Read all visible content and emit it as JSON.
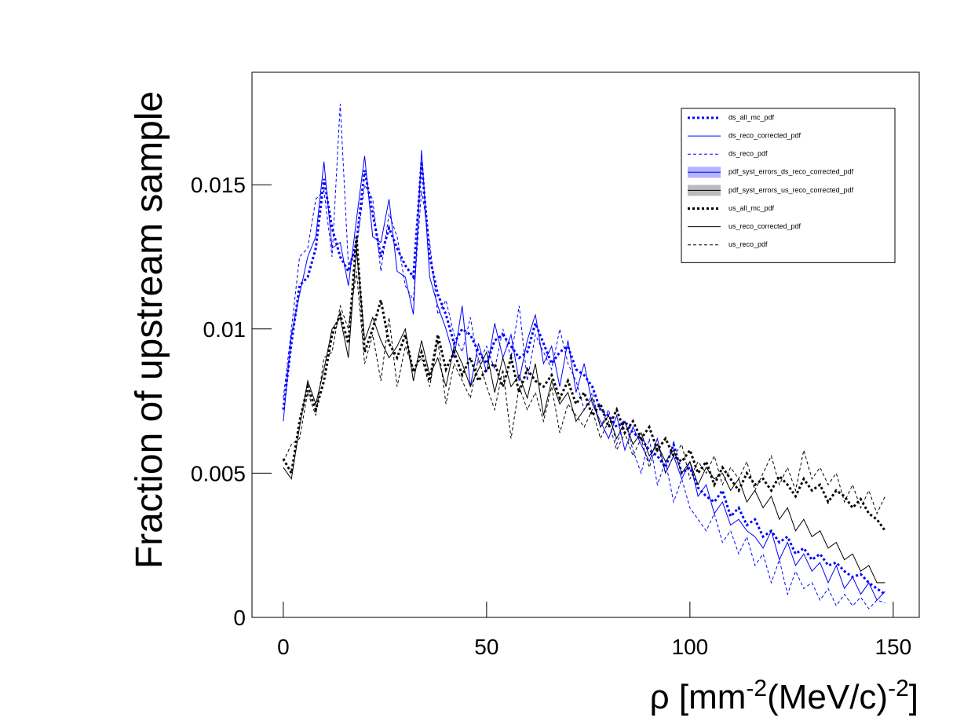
{
  "chart_data": {
    "type": "line",
    "y_label": "Fraction of upstream sample",
    "x_label_parts": [
      "ρ [mm",
      "-2",
      "(MeV/c)",
      "-2",
      "]"
    ],
    "xlim": [
      -7.7,
      156.4
    ],
    "ylim": [
      0,
      0.0189
    ],
    "xticks": [
      0,
      50,
      100,
      150
    ],
    "yticks": [
      0,
      0.005,
      0.01,
      0.015
    ],
    "x": [
      0,
      2,
      4,
      6,
      8,
      10,
      12,
      14,
      16,
      18,
      20,
      22,
      24,
      26,
      28,
      30,
      32,
      34,
      36,
      38,
      40,
      42,
      44,
      46,
      48,
      50,
      52,
      54,
      56,
      58,
      60,
      62,
      64,
      66,
      68,
      70,
      72,
      74,
      76,
      78,
      80,
      82,
      84,
      86,
      88,
      90,
      92,
      94,
      96,
      98,
      100,
      102,
      104,
      106,
      108,
      110,
      112,
      114,
      116,
      118,
      120,
      122,
      124,
      126,
      128,
      130,
      132,
      134,
      136,
      138,
      140,
      142,
      144,
      146,
      148
    ],
    "legend_position": "upper-right",
    "series": [
      {
        "name": "ds_all_mc_pdf",
        "color": "#0000ff",
        "line_style": "dotted",
        "line_width": 3,
        "values": [
          0.0072,
          0.0095,
          0.0115,
          0.0118,
          0.0128,
          0.0152,
          0.0135,
          0.0125,
          0.012,
          0.013,
          0.0155,
          0.014,
          0.0125,
          0.0135,
          0.0128,
          0.0122,
          0.0118,
          0.0158,
          0.0125,
          0.0112,
          0.0105,
          0.0095,
          0.01,
          0.0098,
          0.0092,
          0.0088,
          0.0096,
          0.0098,
          0.0094,
          0.009,
          0.0092,
          0.0102,
          0.0095,
          0.0088,
          0.0092,
          0.0094,
          0.0086,
          0.0084,
          0.008,
          0.0072,
          0.007,
          0.0066,
          0.0068,
          0.0064,
          0.0062,
          0.0058,
          0.0056,
          0.0052,
          0.006,
          0.005,
          0.0052,
          0.0045,
          0.0042,
          0.004,
          0.0044,
          0.0035,
          0.0038,
          0.0032,
          0.0034,
          0.0028,
          0.003,
          0.0026,
          0.0028,
          0.0022,
          0.0024,
          0.002,
          0.0022,
          0.0018,
          0.0019,
          0.0016,
          0.0014,
          0.0015,
          0.0012,
          0.001,
          0.0008
        ]
      },
      {
        "name": "ds_reco_corrected_pdf",
        "color": "#0000ff",
        "line_style": "solid",
        "line_width": 1,
        "values": [
          0.0068,
          0.0098,
          0.0112,
          0.0125,
          0.0132,
          0.0158,
          0.0128,
          0.013,
          0.0115,
          0.0138,
          0.016,
          0.0132,
          0.013,
          0.0145,
          0.012,
          0.0118,
          0.0105,
          0.0162,
          0.0118,
          0.0108,
          0.01,
          0.009,
          0.0108,
          0.008,
          0.0095,
          0.0085,
          0.0102,
          0.009,
          0.0098,
          0.0082,
          0.0096,
          0.0105,
          0.0088,
          0.0094,
          0.008,
          0.0096,
          0.0078,
          0.0088,
          0.0074,
          0.0068,
          0.0062,
          0.007,
          0.0058,
          0.0066,
          0.006,
          0.0054,
          0.0062,
          0.005,
          0.0056,
          0.0048,
          0.0054,
          0.0042,
          0.0046,
          0.0036,
          0.004,
          0.0032,
          0.0034,
          0.003,
          0.0028,
          0.0024,
          0.003,
          0.002,
          0.0026,
          0.0018,
          0.0022,
          0.0016,
          0.0019,
          0.0012,
          0.0018,
          0.001,
          0.0014,
          0.0008,
          0.0012,
          0.0006,
          0.0009
        ]
      },
      {
        "name": "ds_reco_pdf",
        "color": "#0000ff",
        "line_style": "dashed",
        "line_width": 1,
        "values": [
          0.0076,
          0.01,
          0.0125,
          0.0128,
          0.0145,
          0.0148,
          0.0125,
          0.0178,
          0.0122,
          0.0128,
          0.015,
          0.0145,
          0.012,
          0.014,
          0.0132,
          0.0115,
          0.011,
          0.0148,
          0.013,
          0.0105,
          0.011,
          0.0098,
          0.0092,
          0.0104,
          0.0088,
          0.0094,
          0.0086,
          0.01,
          0.009,
          0.0108,
          0.0082,
          0.0098,
          0.0092,
          0.0086,
          0.01,
          0.0088,
          0.0082,
          0.0072,
          0.0078,
          0.0066,
          0.0072,
          0.006,
          0.0068,
          0.0058,
          0.005,
          0.0062,
          0.0046,
          0.0054,
          0.004,
          0.0048,
          0.0038,
          0.0034,
          0.003,
          0.0036,
          0.0026,
          0.003,
          0.0022,
          0.0028,
          0.0018,
          0.0022,
          0.0012,
          0.002,
          0.0008,
          0.0016,
          0.001,
          0.0012,
          0.0006,
          0.001,
          0.0004,
          0.0008,
          0.0004,
          0.0007,
          0.0003,
          0.0006,
          0.0005
        ]
      },
      {
        "name": "pdf_syst_errors_ds_reco_corrected_pdf",
        "color": "#0000ff",
        "fill": "#b3b3ff",
        "line_style": "band",
        "line_width": 1
      },
      {
        "name": "pdf_syst_errors_us_reco_corrected_pdf",
        "color": "#000000",
        "fill": "#bbbbbb",
        "line_style": "band",
        "line_width": 1
      },
      {
        "name": "us_all_mc_pdf",
        "color": "#000000",
        "line_style": "dotted",
        "line_width": 3,
        "values": [
          0.0055,
          0.005,
          0.0068,
          0.008,
          0.0072,
          0.0082,
          0.0098,
          0.0105,
          0.0095,
          0.0132,
          0.0092,
          0.01,
          0.011,
          0.0095,
          0.009,
          0.0098,
          0.0085,
          0.0092,
          0.0082,
          0.0098,
          0.0086,
          0.0092,
          0.0084,
          0.009,
          0.0082,
          0.0086,
          0.0088,
          0.008,
          0.009,
          0.0078,
          0.0086,
          0.0082,
          0.008,
          0.0084,
          0.0076,
          0.0082,
          0.0074,
          0.0078,
          0.007,
          0.0074,
          0.0066,
          0.0072,
          0.0064,
          0.0068,
          0.0062,
          0.0066,
          0.0058,
          0.0062,
          0.0056,
          0.0054,
          0.0058,
          0.005,
          0.0054,
          0.0046,
          0.0052,
          0.0048,
          0.0044,
          0.005,
          0.0046,
          0.0048,
          0.0044,
          0.0049,
          0.0046,
          0.0042,
          0.0048,
          0.0044,
          0.0046,
          0.004,
          0.0044,
          0.0042,
          0.0038,
          0.0041,
          0.0036,
          0.0034,
          0.003
        ]
      },
      {
        "name": "us_reco_corrected_pdf",
        "color": "#000000",
        "line_style": "solid",
        "line_width": 1,
        "values": [
          0.0052,
          0.0048,
          0.0066,
          0.0082,
          0.0074,
          0.0086,
          0.01,
          0.0104,
          0.009,
          0.0128,
          0.0096,
          0.0104,
          0.0096,
          0.009,
          0.0094,
          0.01,
          0.0082,
          0.0096,
          0.0084,
          0.009,
          0.008,
          0.0094,
          0.0088,
          0.008,
          0.0086,
          0.0092,
          0.0078,
          0.009,
          0.008,
          0.0084,
          0.0076,
          0.0088,
          0.007,
          0.0082,
          0.0074,
          0.0078,
          0.0068,
          0.0072,
          0.0076,
          0.0066,
          0.007,
          0.0062,
          0.0068,
          0.006,
          0.0064,
          0.0056,
          0.006,
          0.0054,
          0.0058,
          0.005,
          0.0054,
          0.0046,
          0.0052,
          0.0048,
          0.005,
          0.0044,
          0.0048,
          0.004,
          0.0044,
          0.0038,
          0.0042,
          0.0034,
          0.0038,
          0.003,
          0.0034,
          0.0028,
          0.003,
          0.0024,
          0.0026,
          0.002,
          0.0022,
          0.0016,
          0.0018,
          0.0012,
          0.0012
        ]
      },
      {
        "name": "us_reco_pdf",
        "color": "#000000",
        "line_style": "dashed",
        "line_width": 1,
        "values": [
          0.0054,
          0.006,
          0.0062,
          0.0078,
          0.007,
          0.009,
          0.0092,
          0.0108,
          0.01,
          0.012,
          0.0088,
          0.0098,
          0.0082,
          0.0104,
          0.008,
          0.0094,
          0.0086,
          0.009,
          0.008,
          0.0096,
          0.0074,
          0.0088,
          0.0082,
          0.0076,
          0.009,
          0.008,
          0.0072,
          0.0086,
          0.0062,
          0.008,
          0.0072,
          0.0078,
          0.0068,
          0.008,
          0.0064,
          0.0074,
          0.007,
          0.0066,
          0.0072,
          0.0062,
          0.0068,
          0.0058,
          0.0064,
          0.0056,
          0.0062,
          0.0052,
          0.006,
          0.005,
          0.0056,
          0.006,
          0.0048,
          0.0054,
          0.005,
          0.0056,
          0.0046,
          0.0052,
          0.0048,
          0.0054,
          0.0044,
          0.005,
          0.0056,
          0.0046,
          0.0052,
          0.0044,
          0.0058,
          0.0048,
          0.0052,
          0.0046,
          0.005,
          0.004,
          0.0046,
          0.0038,
          0.0044,
          0.0036,
          0.0042
        ]
      }
    ]
  }
}
